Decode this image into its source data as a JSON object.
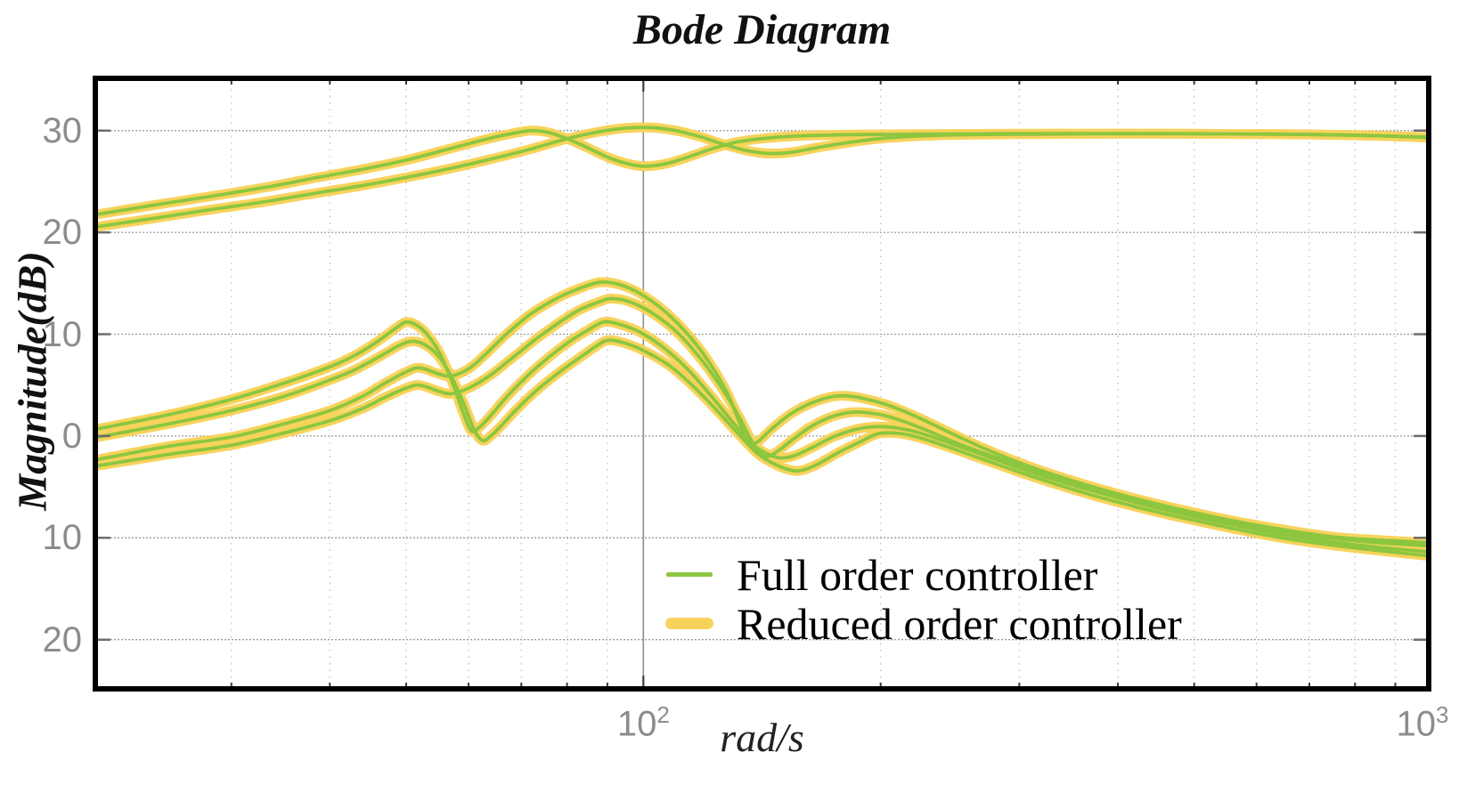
{
  "figure": {
    "title": "Bode Diagram",
    "ylabel": "Magnitude(dB)",
    "xlabel": "rad/s"
  },
  "legend": {
    "items": [
      {
        "label": "Full order controller"
      },
      {
        "label": "Reduced order controller"
      }
    ]
  },
  "colors": {
    "full_order_green": "#8cc63f",
    "reduced_order_yellow": "#f8d35c",
    "grid_major": "#9c9c9c",
    "grid_minor": "#c4c4c4",
    "tick_label_gray": "#8c8c8c",
    "axis_black": "#000000"
  },
  "chart_data": {
    "type": "line",
    "title": "Bode Diagram",
    "xlabel": "rad/s",
    "ylabel": "Magnitude(dB)",
    "x_scale": "log",
    "x_range": [
      20,
      1000
    ],
    "y_range": [
      -25.1,
      35.4
    ],
    "grid": true,
    "legend_position": "lower-center-right",
    "x_ticks": [
      {
        "value": 100,
        "base": "10",
        "exp": "2"
      },
      {
        "value": 1000,
        "base": "10",
        "exp": "3"
      }
    ],
    "x_minor": [
      30,
      40,
      50,
      60,
      70,
      80,
      90,
      200,
      300,
      400,
      500,
      600,
      700,
      800,
      900
    ],
    "y_ticks": [
      {
        "value": 30,
        "label": "30"
      },
      {
        "value": 20,
        "label": "20"
      },
      {
        "value": 10,
        "label": "10"
      },
      {
        "value": 0,
        "label": "0"
      },
      {
        "value": -10,
        "label": "10"
      },
      {
        "value": -20,
        "label": "20"
      }
    ],
    "series": [
      {
        "name": "Full order controller",
        "color": "#8cc63f",
        "stroke_width": 3.8
      },
      {
        "name": "Reduced order controller",
        "color": "#f8d35c",
        "stroke_width": 11
      }
    ],
    "curves": [
      {
        "id": "upper-1",
        "points": [
          [
            20,
            21.7
          ],
          [
            24,
            22.7
          ],
          [
            28,
            23.5
          ],
          [
            33,
            24.4
          ],
          [
            38,
            25.3
          ],
          [
            44,
            26.2
          ],
          [
            50,
            27.1
          ],
          [
            56,
            28.1
          ],
          [
            62,
            29.0
          ],
          [
            67,
            29.6
          ],
          [
            72,
            30.0
          ],
          [
            76,
            29.8
          ],
          [
            80,
            29.2
          ],
          [
            84,
            28.5
          ],
          [
            90,
            27.4
          ],
          [
            95,
            26.8
          ],
          [
            100,
            26.5
          ],
          [
            106,
            26.7
          ],
          [
            113,
            27.3
          ],
          [
            122,
            28.2
          ],
          [
            132,
            28.9
          ],
          [
            145,
            29.3
          ],
          [
            160,
            29.5
          ],
          [
            185,
            29.6
          ],
          [
            220,
            29.65
          ],
          [
            300,
            29.7
          ],
          [
            450,
            29.7
          ],
          [
            650,
            29.65
          ],
          [
            850,
            29.5
          ],
          [
            1000,
            29.35
          ]
        ]
      },
      {
        "id": "upper-2",
        "points": [
          [
            20,
            20.5
          ],
          [
            24,
            21.4
          ],
          [
            28,
            22.2
          ],
          [
            33,
            23.0
          ],
          [
            38,
            23.8
          ],
          [
            44,
            24.6
          ],
          [
            50,
            25.4
          ],
          [
            57,
            26.3
          ],
          [
            64,
            27.2
          ],
          [
            72,
            28.2
          ],
          [
            80,
            29.2
          ],
          [
            88,
            29.9
          ],
          [
            95,
            30.25
          ],
          [
            102,
            30.3
          ],
          [
            110,
            30.0
          ],
          [
            118,
            29.4
          ],
          [
            127,
            28.6
          ],
          [
            136,
            28.0
          ],
          [
            145,
            27.75
          ],
          [
            155,
            27.9
          ],
          [
            168,
            28.4
          ],
          [
            185,
            28.9
          ],
          [
            205,
            29.3
          ],
          [
            240,
            29.55
          ],
          [
            300,
            29.65
          ],
          [
            450,
            29.7
          ],
          [
            650,
            29.65
          ],
          [
            850,
            29.5
          ],
          [
            1000,
            29.3
          ]
        ]
      },
      {
        "id": "lower-1",
        "points": [
          [
            20,
            -2.4
          ],
          [
            25,
            -1.0
          ],
          [
            30,
            -0.1
          ],
          [
            35,
            1.2
          ],
          [
            40,
            2.5
          ],
          [
            44,
            3.9
          ],
          [
            47,
            5.2
          ],
          [
            50,
            6.3
          ],
          [
            52,
            6.7
          ],
          [
            55,
            6.1
          ],
          [
            57,
            5.9
          ],
          [
            60,
            6.6
          ],
          [
            63,
            8.0
          ],
          [
            67,
            10.0
          ],
          [
            72,
            12.0
          ],
          [
            78,
            13.6
          ],
          [
            83,
            14.5
          ],
          [
            88,
            15.1
          ],
          [
            93,
            14.9
          ],
          [
            99,
            14.0
          ],
          [
            107,
            12.1
          ],
          [
            115,
            9.6
          ],
          [
            122,
            6.9
          ],
          [
            128,
            4.1
          ],
          [
            132,
            1.6
          ],
          [
            135,
            -0.3
          ],
          [
            137,
            -0.75
          ],
          [
            140,
            -0.5
          ],
          [
            146,
            0.8
          ],
          [
            154,
            2.2
          ],
          [
            163,
            3.2
          ],
          [
            172,
            3.8
          ],
          [
            180,
            3.95
          ],
          [
            190,
            3.7
          ],
          [
            205,
            3.0
          ],
          [
            225,
            1.7
          ],
          [
            250,
            0.0
          ],
          [
            280,
            -1.7
          ],
          [
            320,
            -3.4
          ],
          [
            380,
            -5.2
          ],
          [
            450,
            -6.7
          ],
          [
            550,
            -8.2
          ],
          [
            650,
            -9.2
          ],
          [
            750,
            -9.9
          ],
          [
            850,
            -10.2
          ],
          [
            1000,
            -10.5
          ]
        ]
      },
      {
        "id": "lower-2",
        "points": [
          [
            20,
            -3.0
          ],
          [
            25,
            -1.8
          ],
          [
            30,
            -0.9
          ],
          [
            35,
            0.3
          ],
          [
            40,
            1.5
          ],
          [
            44,
            2.7
          ],
          [
            47,
            3.8
          ],
          [
            50,
            4.7
          ],
          [
            52,
            5.0
          ],
          [
            55,
            4.4
          ],
          [
            57,
            4.15
          ],
          [
            60,
            4.7
          ],
          [
            64,
            6.0
          ],
          [
            68,
            7.6
          ],
          [
            73,
            9.5
          ],
          [
            78,
            11.1
          ],
          [
            83,
            12.4
          ],
          [
            88,
            13.2
          ],
          [
            91,
            13.5
          ],
          [
            96,
            13.2
          ],
          [
            103,
            12.0
          ],
          [
            111,
            10.0
          ],
          [
            119,
            7.3
          ],
          [
            126,
            4.6
          ],
          [
            132,
            2.0
          ],
          [
            137,
            -0.4
          ],
          [
            141,
            -1.8
          ],
          [
            144,
            -2.0
          ],
          [
            148,
            -1.5
          ],
          [
            155,
            -0.3
          ],
          [
            163,
            0.9
          ],
          [
            172,
            1.8
          ],
          [
            182,
            2.3
          ],
          [
            192,
            2.3
          ],
          [
            205,
            1.9
          ],
          [
            225,
            0.8
          ],
          [
            250,
            -0.7
          ],
          [
            285,
            -2.3
          ],
          [
            330,
            -4.0
          ],
          [
            390,
            -5.6
          ],
          [
            460,
            -7.0
          ],
          [
            560,
            -8.5
          ],
          [
            660,
            -9.5
          ],
          [
            760,
            -10.1
          ],
          [
            860,
            -10.5
          ],
          [
            1000,
            -10.8
          ]
        ]
      },
      {
        "id": "lower-3",
        "points": [
          [
            20,
            0.6
          ],
          [
            25,
            2.1
          ],
          [
            30,
            3.6
          ],
          [
            35,
            5.2
          ],
          [
            40,
            6.8
          ],
          [
            43,
            7.9
          ],
          [
            46,
            9.3
          ],
          [
            48.5,
            10.6
          ],
          [
            50,
            11.2
          ],
          [
            51.5,
            10.9
          ],
          [
            53,
            10.1
          ],
          [
            55,
            8.3
          ],
          [
            57,
            5.6
          ],
          [
            59,
            2.4
          ],
          [
            60.5,
            0.5
          ],
          [
            62,
            0.9
          ],
          [
            64,
            2.0
          ],
          [
            67,
            3.8
          ],
          [
            71,
            5.8
          ],
          [
            76,
            7.8
          ],
          [
            81,
            9.4
          ],
          [
            85,
            10.4
          ],
          [
            89,
            11.2
          ],
          [
            93,
            11.0
          ],
          [
            99,
            10.2
          ],
          [
            106,
            8.7
          ],
          [
            114,
            6.5
          ],
          [
            122,
            3.9
          ],
          [
            130,
            1.3
          ],
          [
            138,
            -0.9
          ],
          [
            145,
            -1.9
          ],
          [
            150,
            -2.15
          ],
          [
            156,
            -1.9
          ],
          [
            164,
            -1.1
          ],
          [
            174,
            -0.1
          ],
          [
            185,
            0.6
          ],
          [
            195,
            0.9
          ],
          [
            207,
            0.85
          ],
          [
            222,
            0.4
          ],
          [
            245,
            -0.7
          ],
          [
            275,
            -2.1
          ],
          [
            320,
            -3.9
          ],
          [
            380,
            -5.6
          ],
          [
            450,
            -7.1
          ],
          [
            550,
            -8.6
          ],
          [
            650,
            -9.7
          ],
          [
            750,
            -10.4
          ],
          [
            850,
            -10.9
          ],
          [
            1000,
            -11.4
          ]
        ]
      },
      {
        "id": "lower-4",
        "points": [
          [
            20,
            -0.2
          ],
          [
            25,
            1.2
          ],
          [
            30,
            2.5
          ],
          [
            35,
            3.9
          ],
          [
            40,
            5.5
          ],
          [
            43,
            6.5
          ],
          [
            46,
            7.7
          ],
          [
            49,
            8.9
          ],
          [
            51,
            9.3
          ],
          [
            53,
            8.9
          ],
          [
            55,
            7.8
          ],
          [
            57,
            5.9
          ],
          [
            59,
            3.4
          ],
          [
            61,
            0.6
          ],
          [
            62.5,
            -0.45
          ],
          [
            64,
            0.0
          ],
          [
            66,
            1.0
          ],
          [
            69,
            2.6
          ],
          [
            73,
            4.4
          ],
          [
            78,
            6.2
          ],
          [
            83,
            7.7
          ],
          [
            87,
            8.8
          ],
          [
            90,
            9.4
          ],
          [
            94,
            9.2
          ],
          [
            100,
            8.4
          ],
          [
            108,
            6.9
          ],
          [
            116,
            4.8
          ],
          [
            124,
            2.5
          ],
          [
            132,
            0.2
          ],
          [
            140,
            -1.8
          ],
          [
            148,
            -2.9
          ],
          [
            155,
            -3.4
          ],
          [
            160,
            -3.3
          ],
          [
            167,
            -2.7
          ],
          [
            177,
            -1.6
          ],
          [
            188,
            -0.6
          ],
          [
            198,
            0.2
          ],
          [
            208,
            0.3
          ],
          [
            220,
            0.0
          ],
          [
            240,
            -0.9
          ],
          [
            270,
            -2.3
          ],
          [
            315,
            -4.1
          ],
          [
            375,
            -5.9
          ],
          [
            445,
            -7.4
          ],
          [
            545,
            -8.9
          ],
          [
            645,
            -10.0
          ],
          [
            745,
            -10.7
          ],
          [
            845,
            -11.2
          ],
          [
            1000,
            -11.8
          ]
        ]
      }
    ]
  }
}
